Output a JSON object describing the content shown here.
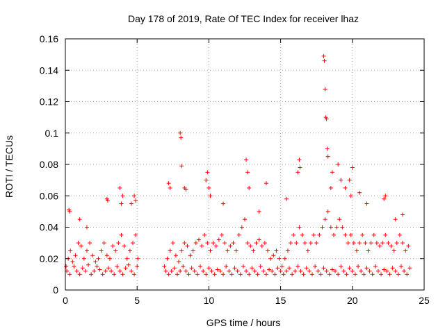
{
  "chart_data": {
    "type": "scatter",
    "title": "Day 178 of 2019, Rate Of TEC Index for receiver lhaz",
    "xlabel": "GPS time / hours",
    "ylabel": "ROTI / TECUs",
    "xlim": [
      0,
      25
    ],
    "ylim": [
      0,
      0.16
    ],
    "xticks": [
      0,
      5,
      10,
      15,
      20,
      25
    ],
    "xtick_labels": [
      "0",
      "5",
      "10",
      "15",
      "20",
      "25"
    ],
    "yticks": [
      0,
      0.02,
      0.04,
      0.06,
      0.08,
      0.1,
      0.12,
      0.14,
      0.16
    ],
    "ytick_labels": [
      "0",
      "0.02",
      "0.04",
      "0.06",
      "0.08",
      "0.1",
      "0.12",
      "0.14",
      "0.16"
    ],
    "grid": true,
    "marker": "+",
    "color": "#ff0000",
    "series": [
      {
        "name": "ROTI",
        "x": [
          0.05,
          0.2,
          0.35,
          0.5,
          0.7,
          0.9,
          1.1,
          1.3,
          1.5,
          1.7,
          1.9,
          2.1,
          2.3,
          2.5,
          2.7,
          2.9,
          3.1,
          3.3,
          3.5,
          3.7,
          3.9,
          4.1,
          4.3,
          4.5,
          4.7,
          4.9,
          5.05,
          0.1,
          0.3,
          0.6,
          0.8,
          1.0,
          1.2,
          1.4,
          1.6,
          1.8,
          2.0,
          2.2,
          2.4,
          2.6,
          2.8,
          3.0,
          3.2,
          3.4,
          3.6,
          3.8,
          4.0,
          4.2,
          4.4,
          4.6,
          4.8,
          5.0,
          0.25,
          0.3,
          1.0,
          1.5,
          2.9,
          2.95,
          3.8,
          3.9,
          4.0,
          4.6,
          4.8,
          4.9,
          6.9,
          7.1,
          7.3,
          7.5,
          7.7,
          7.9,
          8.1,
          8.3,
          8.5,
          8.7,
          8.9,
          9.1,
          9.3,
          9.5,
          9.7,
          9.9,
          10.1,
          10.3,
          10.5,
          10.7,
          10.9,
          11.1,
          11.3,
          11.5,
          11.7,
          11.9,
          12.1,
          12.3,
          12.5,
          12.7,
          12.9,
          13.1,
          13.3,
          13.5,
          13.7,
          13.9,
          14.1,
          14.3,
          14.5,
          14.7,
          14.9,
          7.0,
          7.2,
          7.4,
          7.6,
          7.8,
          8.0,
          8.2,
          8.4,
          8.6,
          8.8,
          9.0,
          9.2,
          9.4,
          9.6,
          9.8,
          10.0,
          10.2,
          10.4,
          10.6,
          10.8,
          11.0,
          11.2,
          11.4,
          11.6,
          11.8,
          12.0,
          12.2,
          12.4,
          12.6,
          12.8,
          13.0,
          13.2,
          13.4,
          13.6,
          13.8,
          14.0,
          14.2,
          14.4,
          14.6,
          14.8,
          7.2,
          7.3,
          8.0,
          8.05,
          8.1,
          8.3,
          8.4,
          9.8,
          9.9,
          10.0,
          10.1,
          11.0,
          12.6,
          12.7,
          12.8,
          13.5,
          14.0,
          15.1,
          15.3,
          15.5,
          15.7,
          15.9,
          16.1,
          16.3,
          16.5,
          16.7,
          16.9,
          17.1,
          17.3,
          17.5,
          17.7,
          17.9,
          18.1,
          18.3,
          18.5,
          18.7,
          18.9,
          19.1,
          19.3,
          19.5,
          19.7,
          19.9,
          20.1,
          20.3,
          20.5,
          20.7,
          20.9,
          21.1,
          21.3,
          21.5,
          21.7,
          21.9,
          22.1,
          22.3,
          22.5,
          22.7,
          22.9,
          23.1,
          23.3,
          23.5,
          23.7,
          23.9,
          15.0,
          15.2,
          15.4,
          15.6,
          15.8,
          16.0,
          16.2,
          16.4,
          16.6,
          16.8,
          17.0,
          17.2,
          17.4,
          17.6,
          17.8,
          18.0,
          18.2,
          18.4,
          18.6,
          18.8,
          19.0,
          19.2,
          19.4,
          19.6,
          19.8,
          20.0,
          20.2,
          20.4,
          20.6,
          20.8,
          21.0,
          21.2,
          21.4,
          21.6,
          21.8,
          22.0,
          22.2,
          22.4,
          22.6,
          22.8,
          23.0,
          23.2,
          23.4,
          23.6,
          23.8,
          24.0,
          15.4,
          16.2,
          16.3,
          16.35,
          18.0,
          18.05,
          18.1,
          18.15,
          18.2,
          18.25,
          18.3,
          18.5,
          18.6,
          19.0,
          19.2,
          19.5,
          19.8,
          19.9,
          20.0,
          20.5,
          21.0,
          22.2,
          22.3,
          23.0,
          23.5
        ],
        "y": [
          0.015,
          0.02,
          0.025,
          0.018,
          0.022,
          0.03,
          0.028,
          0.02,
          0.025,
          0.03,
          0.022,
          0.018,
          0.02,
          0.025,
          0.03,
          0.022,
          0.02,
          0.028,
          0.025,
          0.03,
          0.035,
          0.028,
          0.02,
          0.025,
          0.03,
          0.035,
          0.02,
          0.012,
          0.01,
          0.015,
          0.012,
          0.01,
          0.014,
          0.012,
          0.016,
          0.01,
          0.012,
          0.015,
          0.013,
          0.01,
          0.012,
          0.014,
          0.012,
          0.01,
          0.015,
          0.012,
          0.01,
          0.014,
          0.016,
          0.012,
          0.01,
          0.015,
          0.051,
          0.05,
          0.045,
          0.04,
          0.058,
          0.057,
          0.065,
          0.055,
          0.06,
          0.055,
          0.06,
          0.057,
          0.015,
          0.02,
          0.025,
          0.03,
          0.022,
          0.018,
          0.025,
          0.03,
          0.028,
          0.022,
          0.025,
          0.03,
          0.032,
          0.028,
          0.035,
          0.03,
          0.025,
          0.03,
          0.028,
          0.032,
          0.035,
          0.03,
          0.025,
          0.028,
          0.03,
          0.025,
          0.035,
          0.04,
          0.045,
          0.03,
          0.028,
          0.025,
          0.03,
          0.032,
          0.028,
          0.03,
          0.025,
          0.02,
          0.022,
          0.025,
          0.02,
          0.012,
          0.01,
          0.012,
          0.014,
          0.01,
          0.012,
          0.015,
          0.012,
          0.01,
          0.014,
          0.012,
          0.01,
          0.015,
          0.012,
          0.01,
          0.014,
          0.012,
          0.01,
          0.013,
          0.012,
          0.01,
          0.015,
          0.012,
          0.01,
          0.014,
          0.012,
          0.01,
          0.015,
          0.012,
          0.01,
          0.014,
          0.012,
          0.01,
          0.015,
          0.012,
          0.01,
          0.013,
          0.012,
          0.01,
          0.014,
          0.068,
          0.065,
          0.1,
          0.097,
          0.079,
          0.065,
          0.064,
          0.07,
          0.075,
          0.065,
          0.06,
          0.055,
          0.083,
          0.075,
          0.065,
          0.05,
          0.068,
          0.015,
          0.02,
          0.025,
          0.03,
          0.035,
          0.03,
          0.04,
          0.035,
          0.03,
          0.025,
          0.03,
          0.035,
          0.03,
          0.035,
          0.04,
          0.045,
          0.05,
          0.04,
          0.035,
          0.04,
          0.045,
          0.04,
          0.035,
          0.03,
          0.035,
          0.03,
          0.025,
          0.03,
          0.035,
          0.03,
          0.025,
          0.03,
          0.035,
          0.03,
          0.028,
          0.03,
          0.035,
          0.03,
          0.028,
          0.025,
          0.03,
          0.035,
          0.03,
          0.025,
          0.028,
          0.012,
          0.01,
          0.012,
          0.014,
          0.01,
          0.012,
          0.015,
          0.012,
          0.01,
          0.014,
          0.012,
          0.01,
          0.015,
          0.012,
          0.01,
          0.014,
          0.012,
          0.01,
          0.013,
          0.012,
          0.01,
          0.015,
          0.012,
          0.01,
          0.014,
          0.012,
          0.01,
          0.015,
          0.012,
          0.01,
          0.014,
          0.012,
          0.01,
          0.015,
          0.012,
          0.01,
          0.013,
          0.012,
          0.01,
          0.014,
          0.012,
          0.01,
          0.015,
          0.012,
          0.01,
          0.014,
          0.058,
          0.075,
          0.083,
          0.078,
          0.149,
          0.146,
          0.128,
          0.11,
          0.109,
          0.09,
          0.085,
          0.065,
          0.075,
          0.08,
          0.07,
          0.065,
          0.07,
          0.06,
          0.078,
          0.062,
          0.055,
          0.058,
          0.06,
          0.045,
          0.048
        ]
      }
    ]
  }
}
